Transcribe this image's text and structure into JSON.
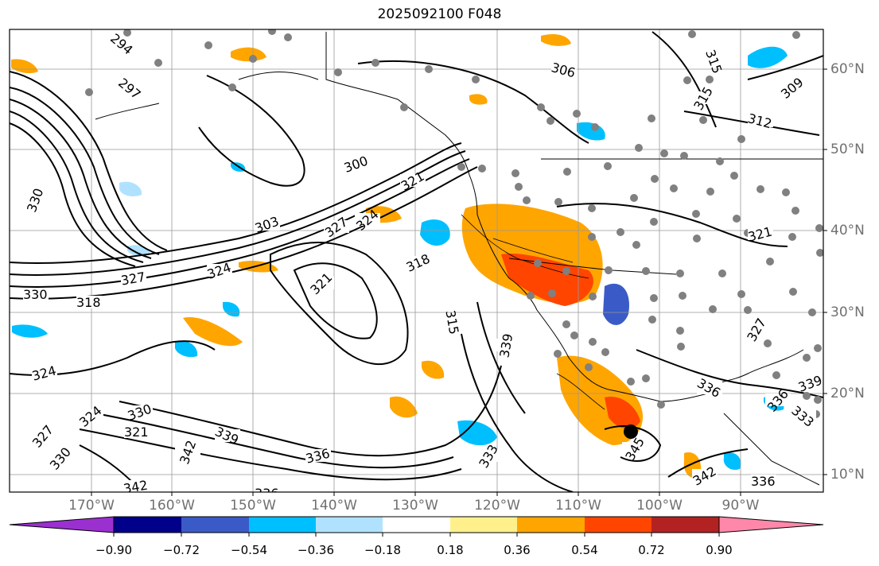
{
  "title": "2025092100 F048",
  "lon_labels": [
    "170°W",
    "160°W",
    "150°W",
    "140°W",
    "130°W",
    "120°W",
    "110°W",
    "100°W",
    "90°W"
  ],
  "lat_labels": [
    "60°N",
    "50°N",
    "40°N",
    "30°N",
    "20°N",
    "10°N"
  ],
  "colorbar": {
    "ticks": [
      "−0.90",
      "−0.72",
      "−0.54",
      "−0.36",
      "−0.18",
      "0.18",
      "0.36",
      "0.54",
      "0.72",
      "0.90"
    ],
    "colors": [
      "#9b30d0",
      "#00008b",
      "#3a5bc7",
      "#00bfff",
      "#b0e2ff",
      "#ffffff",
      "#fff08c",
      "#ffa500",
      "#ff4500",
      "#b22222",
      "#ff88aa"
    ]
  },
  "contour_labels": [
    "294",
    "297",
    "300",
    "303",
    "306",
    "309",
    "312",
    "315",
    "318",
    "321",
    "324",
    "327",
    "330",
    "333",
    "336",
    "339",
    "342",
    "345"
  ],
  "marker": "storm-center"
}
